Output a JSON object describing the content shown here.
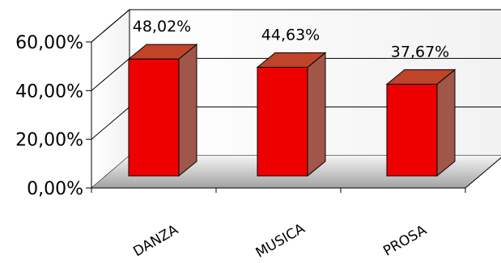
{
  "chart_data": {
    "type": "bar",
    "categories": [
      "DANZA",
      "MUSICA",
      "PROSA"
    ],
    "values": [
      48.02,
      44.63,
      37.67
    ],
    "value_labels": [
      "48,02%",
      "44,63%",
      "37,67%"
    ],
    "ylim": [
      0,
      60
    ],
    "yticks": [
      0,
      20,
      40,
      60
    ],
    "ytick_labels": [
      "0,00%",
      "20,00%",
      "40,00%",
      "60,00%"
    ],
    "title": "",
    "xlabel": "",
    "ylabel": "",
    "grid": true,
    "legend": "none",
    "style": "3d-column",
    "colors": {
      "bar_front": "#ee0000",
      "bar_top": "#c0442a",
      "bar_side": "#a0574a",
      "floor": "#a8a8a8",
      "wall": "#ffffff",
      "grid": "#000000"
    }
  }
}
